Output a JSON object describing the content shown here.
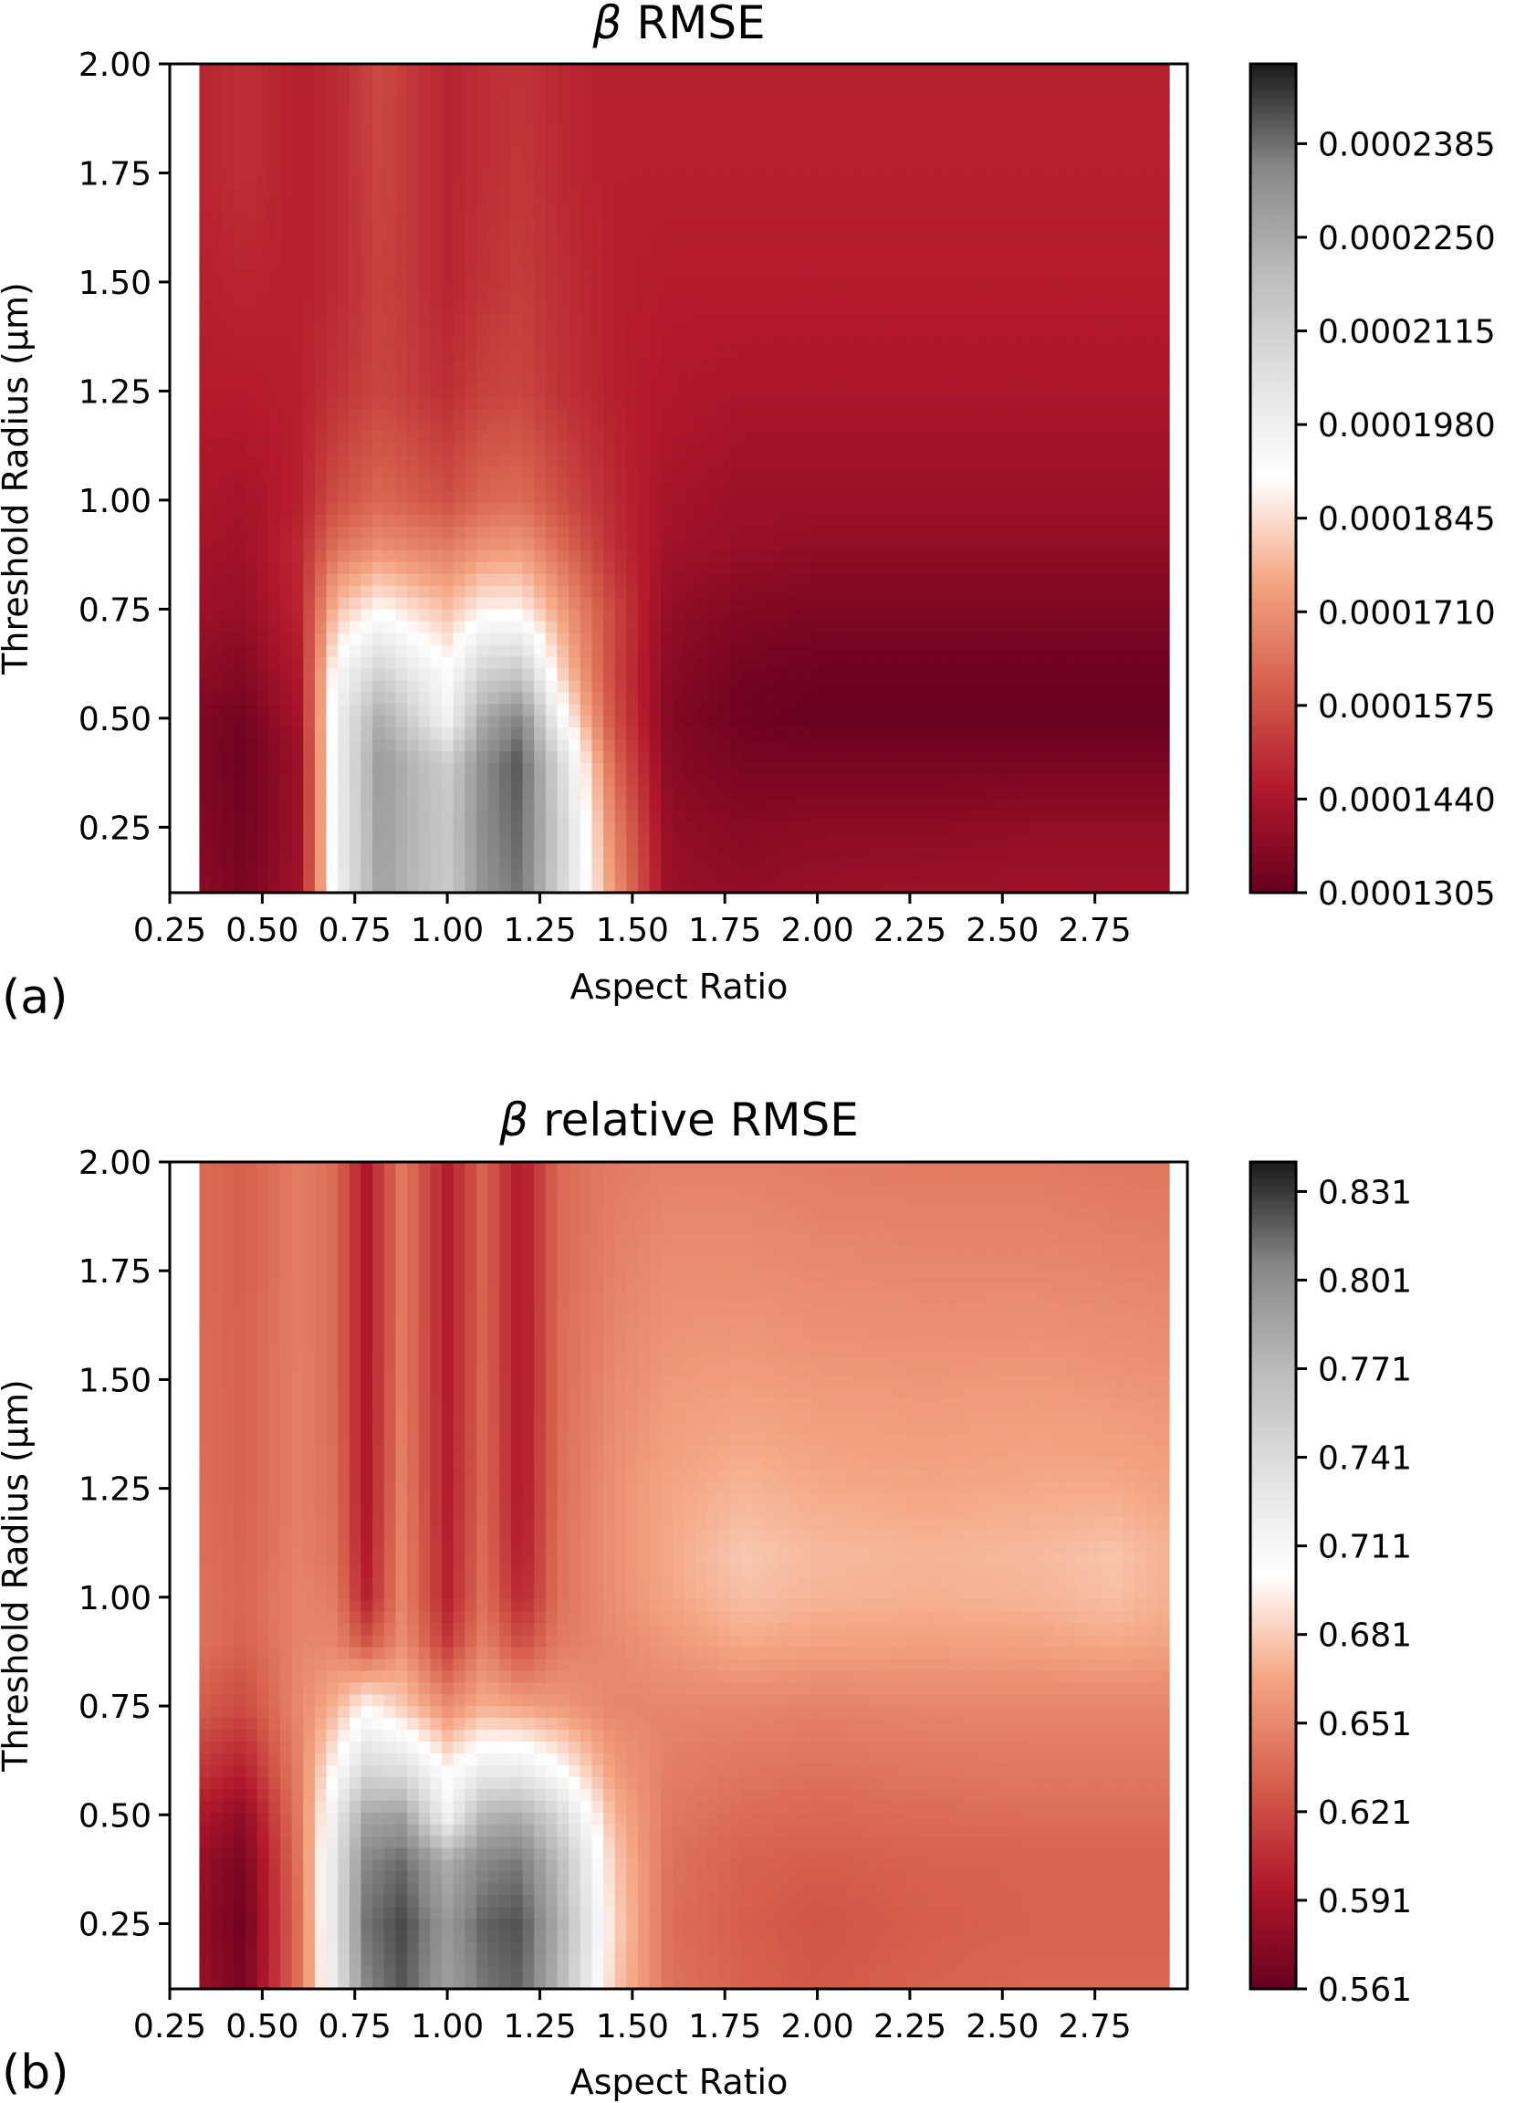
{
  "chart_data": [
    {
      "type": "heatmap",
      "panel_label": "(a)",
      "title_symbol": "β",
      "title_text": "RMSE",
      "xlabel": "Aspect Ratio",
      "ylabel": "Threshold Radius (μm)",
      "xlim": [
        0.25,
        3.0
      ],
      "ylim": [
        0.1,
        2.0
      ],
      "xticks": [
        "0.25",
        "0.50",
        "0.75",
        "1.00",
        "1.25",
        "1.50",
        "1.75",
        "2.00",
        "2.25",
        "2.50",
        "2.75"
      ],
      "yticks": [
        "0.25",
        "0.50",
        "0.75",
        "1.00",
        "1.25",
        "1.50",
        "1.75",
        "2.00"
      ],
      "colorbar_ticks": [
        "0.0001305",
        "0.0001440",
        "0.0001575",
        "0.0001710",
        "0.0001845",
        "0.0001980",
        "0.0002115",
        "0.0002250",
        "0.0002385"
      ],
      "colorbar_range": [
        0.0001305,
        0.00025
      ],
      "colormap": "RdGy",
      "x": [
        0.33,
        0.45,
        0.6,
        0.7,
        0.82,
        0.9,
        1.0,
        1.1,
        1.2,
        1.3,
        1.45,
        1.6,
        1.8,
        2.0,
        2.3,
        2.6,
        2.95
      ],
      "y": [
        0.1,
        0.25,
        0.4,
        0.5,
        0.6,
        0.75,
        0.9,
        1.0,
        1.25,
        1.5,
        1.75,
        2.0
      ],
      "z": [
        [
          0.000138,
          0.000134,
          0.000142,
          0.000196,
          0.000228,
          0.000221,
          0.000214,
          0.000232,
          0.000238,
          0.000212,
          0.000172,
          0.00014,
          0.000139,
          0.00014,
          0.000141,
          0.000141,
          0.000141
        ],
        [
          0.000136,
          0.000133,
          0.000141,
          0.000197,
          0.000229,
          0.000222,
          0.000215,
          0.000234,
          0.00024,
          0.000213,
          0.000168,
          0.000139,
          0.000137,
          0.000138,
          0.000138,
          0.000139,
          0.000139
        ],
        [
          0.000135,
          0.000132,
          0.000141,
          0.000197,
          0.00023,
          0.000222,
          0.000213,
          0.000234,
          0.000242,
          0.00021,
          0.000162,
          0.000137,
          0.000134,
          0.000134,
          0.000134,
          0.000134,
          0.000134
        ],
        [
          0.000135,
          0.000133,
          0.000143,
          0.000197,
          0.000225,
          0.000212,
          0.000196,
          0.000226,
          0.000236,
          0.000196,
          0.000157,
          0.000136,
          0.000132,
          0.000131,
          0.000131,
          0.000131,
          0.000131
        ],
        [
          0.000138,
          0.000136,
          0.000145,
          0.000194,
          0.000212,
          0.000202,
          0.000192,
          0.000212,
          0.000216,
          0.000185,
          0.000155,
          0.000137,
          0.000133,
          0.000132,
          0.000132,
          0.000132,
          0.000132
        ],
        [
          0.000141,
          0.00014,
          0.000148,
          0.00018,
          0.00019,
          0.000185,
          0.00018,
          0.000188,
          0.000188,
          0.000175,
          0.000155,
          0.000139,
          0.000136,
          0.000135,
          0.000135,
          0.000135,
          0.000135
        ],
        [
          0.000143,
          0.000142,
          0.000149,
          0.000164,
          0.00017,
          0.000168,
          0.000166,
          0.000171,
          0.000172,
          0.000163,
          0.00015,
          0.000142,
          0.00014,
          0.000139,
          0.000139,
          0.000139,
          0.000139
        ],
        [
          0.000144,
          0.000143,
          0.000147,
          0.000157,
          0.000162,
          0.00016,
          0.000157,
          0.000162,
          0.000163,
          0.000157,
          0.000149,
          0.000143,
          0.000141,
          0.000141,
          0.000141,
          0.000141,
          0.000141
        ],
        [
          0.000146,
          0.000146,
          0.000147,
          0.000151,
          0.000155,
          0.000153,
          0.00015,
          0.000154,
          0.000155,
          0.000151,
          0.000147,
          0.000145,
          0.000144,
          0.000144,
          0.000144,
          0.000144,
          0.000144
        ],
        [
          0.000147,
          0.000148,
          0.000147,
          0.000149,
          0.000154,
          0.000152,
          0.000148,
          0.000151,
          0.000153,
          0.00015,
          0.000147,
          0.000146,
          0.000146,
          0.000146,
          0.000146,
          0.000146,
          0.000146
        ],
        [
          0.000148,
          0.00015,
          0.000147,
          0.000149,
          0.000155,
          0.000152,
          0.000148,
          0.00015,
          0.000152,
          0.000149,
          0.000147,
          0.000147,
          0.000147,
          0.000147,
          0.000147,
          0.000147,
          0.000147
        ],
        [
          0.000148,
          0.00015,
          0.000147,
          0.000149,
          0.000156,
          0.000152,
          0.000148,
          0.00015,
          0.000151,
          0.000149,
          0.000147,
          0.000147,
          0.000147,
          0.000147,
          0.000147,
          0.000147,
          0.000147
        ]
      ]
    },
    {
      "type": "heatmap",
      "panel_label": "(b)",
      "title_symbol": "β",
      "title_text": "relative RMSE",
      "xlabel": "Aspect Ratio",
      "ylabel": "Threshold Radius (μm)",
      "xlim": [
        0.25,
        3.0
      ],
      "ylim": [
        0.1,
        2.0
      ],
      "xticks": [
        "0.25",
        "0.50",
        "0.75",
        "1.00",
        "1.25",
        "1.50",
        "1.75",
        "2.00",
        "2.25",
        "2.50",
        "2.75"
      ],
      "yticks": [
        "0.25",
        "0.50",
        "0.75",
        "1.00",
        "1.25",
        "1.50",
        "1.75",
        "2.00"
      ],
      "colorbar_ticks": [
        "0.561",
        "0.591",
        "0.621",
        "0.651",
        "0.681",
        "0.711",
        "0.741",
        "0.771",
        "0.801",
        "0.831"
      ],
      "colorbar_range": [
        0.561,
        0.841
      ],
      "colormap": "RdGy",
      "x": [
        0.33,
        0.45,
        0.6,
        0.7,
        0.78,
        0.88,
        1.0,
        1.1,
        1.2,
        1.3,
        1.45,
        1.6,
        1.8,
        2.0,
        2.3,
        2.6,
        2.8,
        2.95
      ],
      "y": [
        0.1,
        0.25,
        0.4,
        0.5,
        0.6,
        0.75,
        0.9,
        1.0,
        1.1,
        1.25,
        1.5,
        1.75,
        2.0
      ],
      "z": [
        [
          0.585,
          0.568,
          0.64,
          0.73,
          0.805,
          0.822,
          0.79,
          0.812,
          0.818,
          0.775,
          0.68,
          0.64,
          0.632,
          0.628,
          0.632,
          0.635,
          0.635,
          0.635
        ],
        [
          0.582,
          0.565,
          0.64,
          0.735,
          0.812,
          0.826,
          0.795,
          0.818,
          0.823,
          0.782,
          0.685,
          0.638,
          0.63,
          0.626,
          0.63,
          0.632,
          0.632,
          0.632
        ],
        [
          0.585,
          0.57,
          0.642,
          0.735,
          0.805,
          0.815,
          0.78,
          0.805,
          0.81,
          0.77,
          0.68,
          0.64,
          0.632,
          0.63,
          0.632,
          0.632,
          0.632,
          0.632
        ],
        [
          0.595,
          0.58,
          0.645,
          0.725,
          0.785,
          0.79,
          0.715,
          0.775,
          0.78,
          0.745,
          0.672,
          0.643,
          0.637,
          0.635,
          0.637,
          0.638,
          0.638,
          0.638
        ],
        [
          0.61,
          0.598,
          0.648,
          0.705,
          0.745,
          0.74,
          0.7,
          0.725,
          0.725,
          0.705,
          0.662,
          0.646,
          0.642,
          0.64,
          0.642,
          0.643,
          0.643,
          0.643
        ],
        [
          0.63,
          0.62,
          0.652,
          0.672,
          0.7,
          0.68,
          0.655,
          0.67,
          0.665,
          0.66,
          0.65,
          0.65,
          0.65,
          0.648,
          0.65,
          0.65,
          0.65,
          0.65
        ],
        [
          0.64,
          0.632,
          0.65,
          0.65,
          0.625,
          0.655,
          0.612,
          0.648,
          0.62,
          0.645,
          0.652,
          0.66,
          0.668,
          0.665,
          0.664,
          0.665,
          0.668,
          0.665
        ],
        [
          0.64,
          0.634,
          0.65,
          0.645,
          0.6,
          0.65,
          0.6,
          0.64,
          0.602,
          0.64,
          0.655,
          0.666,
          0.676,
          0.672,
          0.67,
          0.672,
          0.676,
          0.67
        ],
        [
          0.639,
          0.633,
          0.648,
          0.64,
          0.596,
          0.65,
          0.6,
          0.638,
          0.596,
          0.64,
          0.656,
          0.668,
          0.679,
          0.674,
          0.672,
          0.674,
          0.678,
          0.671
        ],
        [
          0.638,
          0.632,
          0.647,
          0.638,
          0.594,
          0.648,
          0.598,
          0.636,
          0.594,
          0.638,
          0.656,
          0.666,
          0.672,
          0.668,
          0.666,
          0.668,
          0.668,
          0.665
        ],
        [
          0.637,
          0.632,
          0.647,
          0.636,
          0.594,
          0.646,
          0.598,
          0.635,
          0.594,
          0.637,
          0.652,
          0.66,
          0.662,
          0.66,
          0.659,
          0.66,
          0.658,
          0.657
        ],
        [
          0.636,
          0.631,
          0.646,
          0.636,
          0.594,
          0.645,
          0.598,
          0.634,
          0.594,
          0.636,
          0.648,
          0.654,
          0.654,
          0.652,
          0.651,
          0.651,
          0.65,
          0.649
        ],
        [
          0.636,
          0.631,
          0.646,
          0.636,
          0.594,
          0.645,
          0.598,
          0.634,
          0.594,
          0.636,
          0.645,
          0.648,
          0.648,
          0.646,
          0.645,
          0.645,
          0.643,
          0.642
        ]
      ]
    }
  ]
}
